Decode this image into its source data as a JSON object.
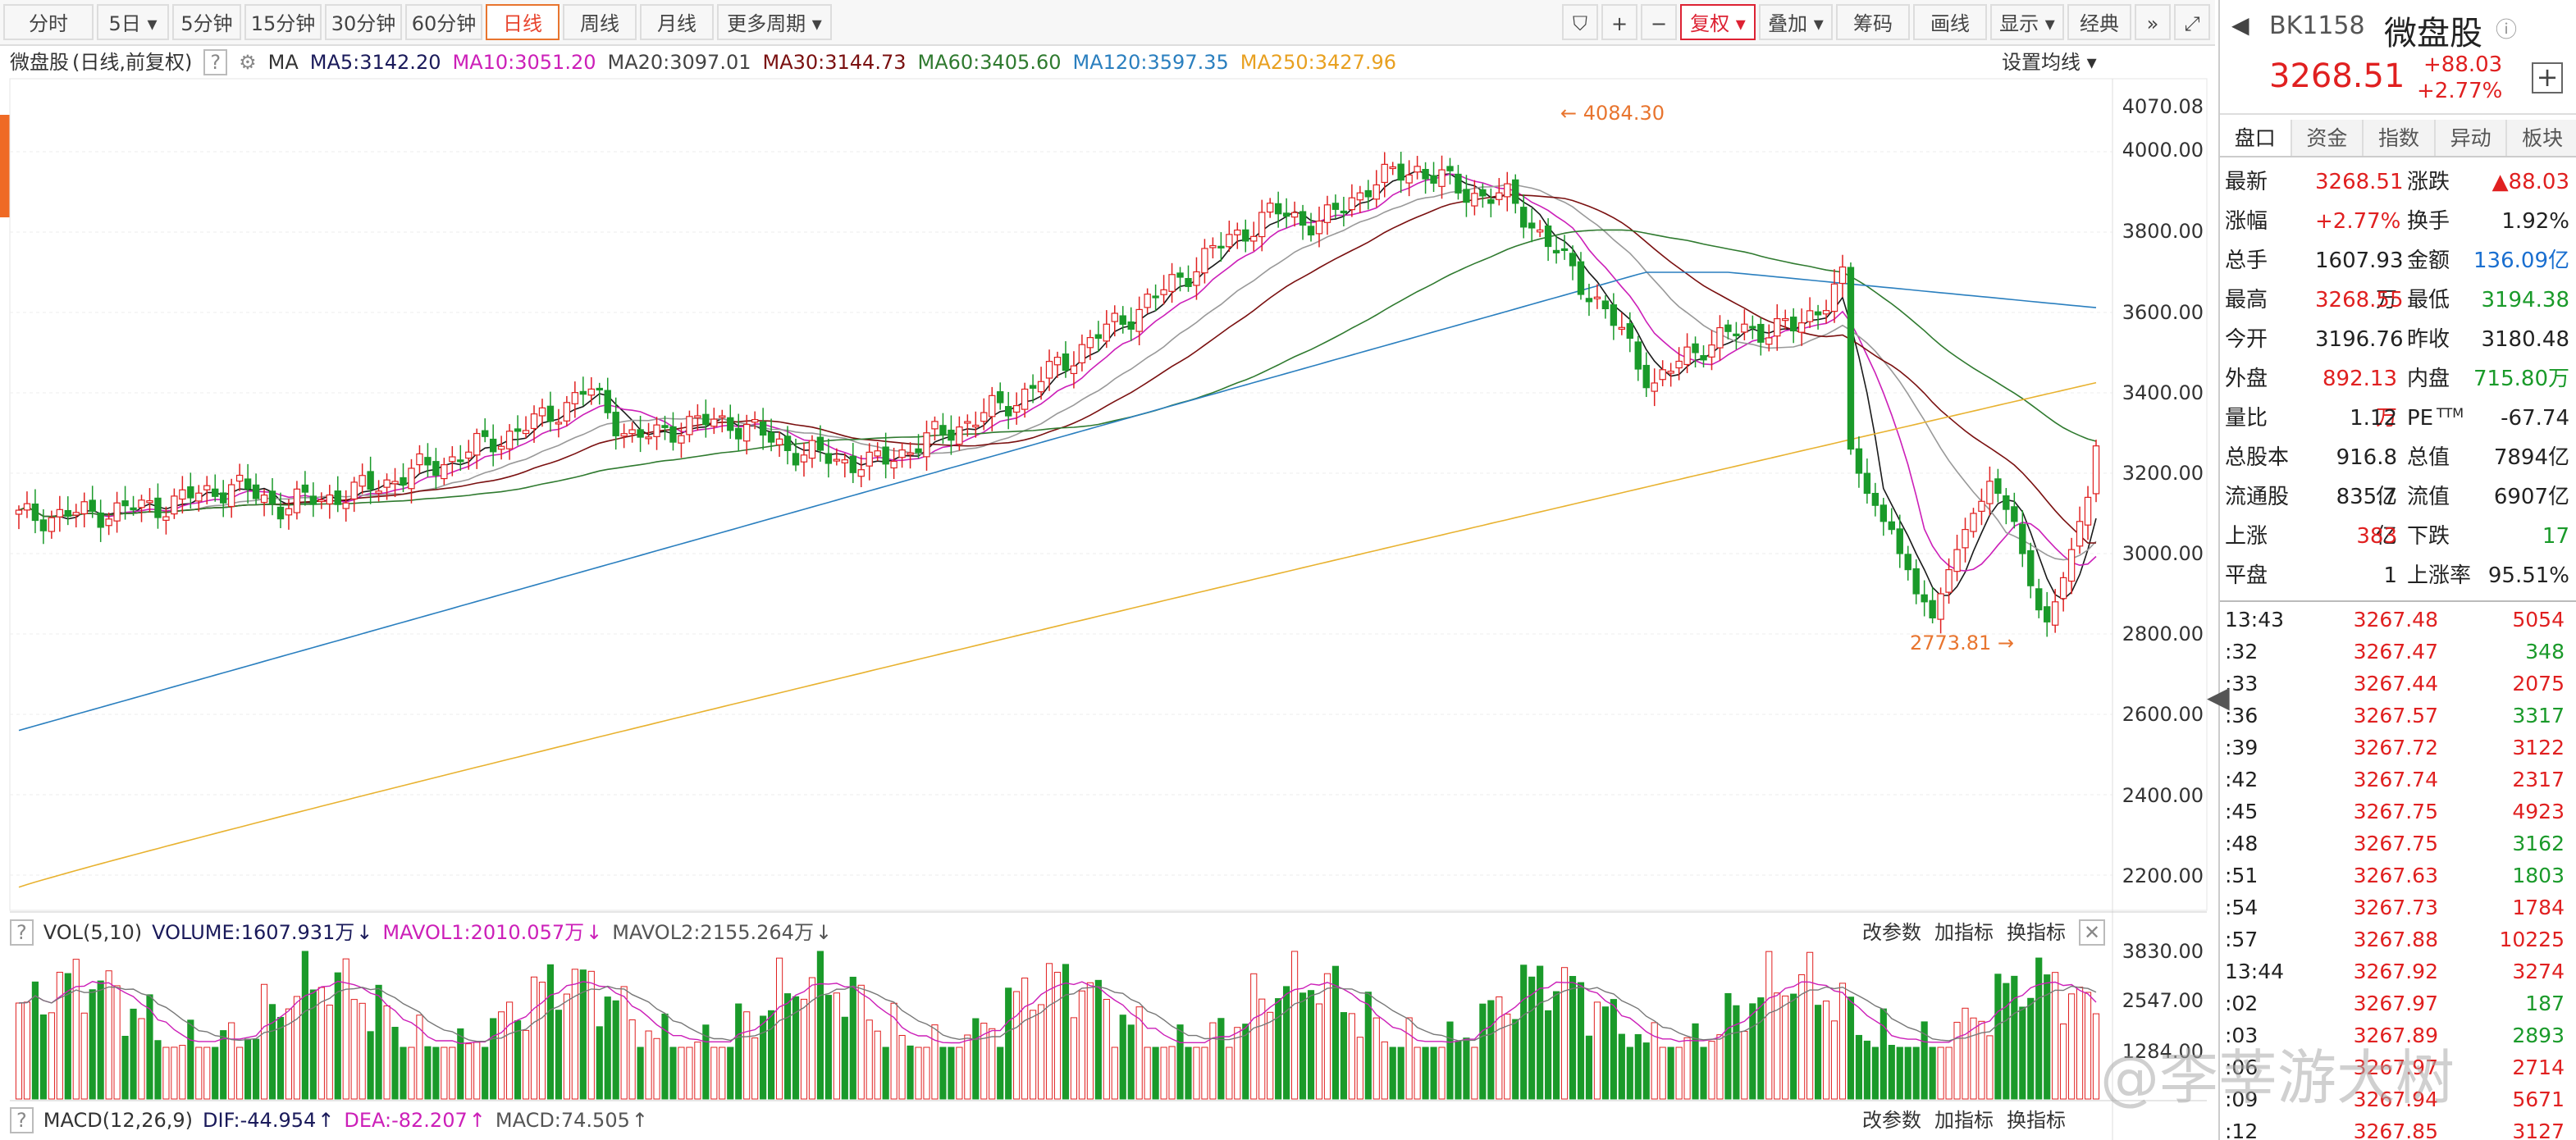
{
  "toolbar": {
    "periods": [
      "分时",
      "5日",
      "5分钟",
      "15分钟",
      "30分钟",
      "60分钟",
      "日线",
      "周线",
      "月线",
      "更多周期"
    ],
    "active_period": "日线",
    "right_buttons": [
      "复权",
      "叠加",
      "筹码",
      "画线",
      "显示",
      "经典"
    ]
  },
  "legend": {
    "name": "微盘股",
    "mode": "(日线,前复权)",
    "help": "?",
    "ma_label": "MA",
    "ma5": "MA5:3142.20",
    "ma10": "MA10:3051.20",
    "ma20": "MA20:3097.01",
    "ma30": "MA30:3144.73",
    "ma60": "MA60:3405.60",
    "ma120": "MA120:3597.35",
    "ma250": "MA250:3427.96",
    "settings": "设置均线"
  },
  "colors": {
    "up": "#e02020",
    "down": "#1a9a2a",
    "ma5": "#1a1a1a",
    "ma10": "#cc1fb8",
    "ma20": "#999999",
    "ma30": "#7a1010",
    "ma60": "#2f7a2f",
    "ma120": "#2a7fbf",
    "ma250": "#e8b230"
  },
  "price_axis": [
    "4070.08",
    "4000.00",
    "3800.00",
    "3600.00",
    "3400.00",
    "3200.00",
    "3000.00",
    "2800.00",
    "2600.00",
    "2400.00",
    "2200.00"
  ],
  "annotations": {
    "high": "4084.30",
    "low": "2773.81"
  },
  "volume": {
    "label": "VOL(5,10)",
    "volume": "VOLUME:1607.931万",
    "mavol1": "MAVOL1:2010.057万",
    "mavol2": "MAVOL2:2155.264万",
    "controls": [
      "改参数",
      "加指标",
      "换指标"
    ],
    "axis": [
      "3830.00",
      "2547.00",
      "1284.00"
    ]
  },
  "macd": {
    "label": "MACD(12,26,9)",
    "dif": "DIF:-44.954",
    "dea": "DEA:-82.207",
    "macd": "MACD:74.505",
    "controls": [
      "改参数",
      "加指标",
      "换指标"
    ]
  },
  "panel": {
    "code": "BK1158",
    "name": "微盘股",
    "price": "3268.51",
    "change": "+88.03",
    "pct": "+2.77%",
    "tabs": [
      "盘口",
      "资金",
      "指数",
      "异动",
      "板块"
    ],
    "quote": [
      [
        "最新",
        "3268.51",
        "涨跌",
        "▲88.03"
      ],
      [
        "涨幅",
        "+2.77%",
        "换手",
        "1.92%"
      ],
      [
        "总手",
        "1607.93万",
        "金额",
        "136.09亿"
      ],
      [
        "最高",
        "3268.55",
        "最低",
        "3194.38"
      ],
      [
        "今开",
        "3196.76",
        "昨收",
        "3180.48"
      ],
      [
        "外盘",
        "892.13万",
        "内盘",
        "715.80万"
      ],
      [
        "量比",
        "1.12",
        "PE",
        "-67.74"
      ],
      [
        "总股本",
        "916.8亿",
        "总值",
        "7894亿"
      ],
      [
        "流通股",
        "835.7亿",
        "流值",
        "6907亿"
      ],
      [
        "上涨",
        "383",
        "下跌",
        "17"
      ],
      [
        "平盘",
        "1",
        "上涨率",
        "95.51%"
      ]
    ],
    "pe_sup": "TTM",
    "ticks": [
      [
        "13:43",
        "3267.48",
        "5054"
      ],
      [
        ":32",
        "3267.47",
        "348"
      ],
      [
        ":33",
        "3267.44",
        "2075"
      ],
      [
        ":36",
        "3267.57",
        "3317"
      ],
      [
        ":39",
        "3267.72",
        "3122"
      ],
      [
        ":42",
        "3267.74",
        "2317"
      ],
      [
        ":45",
        "3267.75",
        "4923"
      ],
      [
        ":48",
        "3267.75",
        "3162"
      ],
      [
        ":51",
        "3267.63",
        "1803"
      ],
      [
        ":54",
        "3267.73",
        "1784"
      ],
      [
        ":57",
        "3267.88",
        "10225"
      ],
      [
        "13:44",
        "3267.92",
        "3274"
      ],
      [
        ":02",
        "3267.97",
        "187"
      ],
      [
        ":03",
        "3267.89",
        "2893"
      ],
      [
        ":06",
        "3267.97",
        "2714"
      ],
      [
        ":09",
        "3267.94",
        "5671"
      ],
      [
        ":12",
        "3267.85",
        "3127"
      ]
    ]
  },
  "watermark": "@李莘游大树"
}
